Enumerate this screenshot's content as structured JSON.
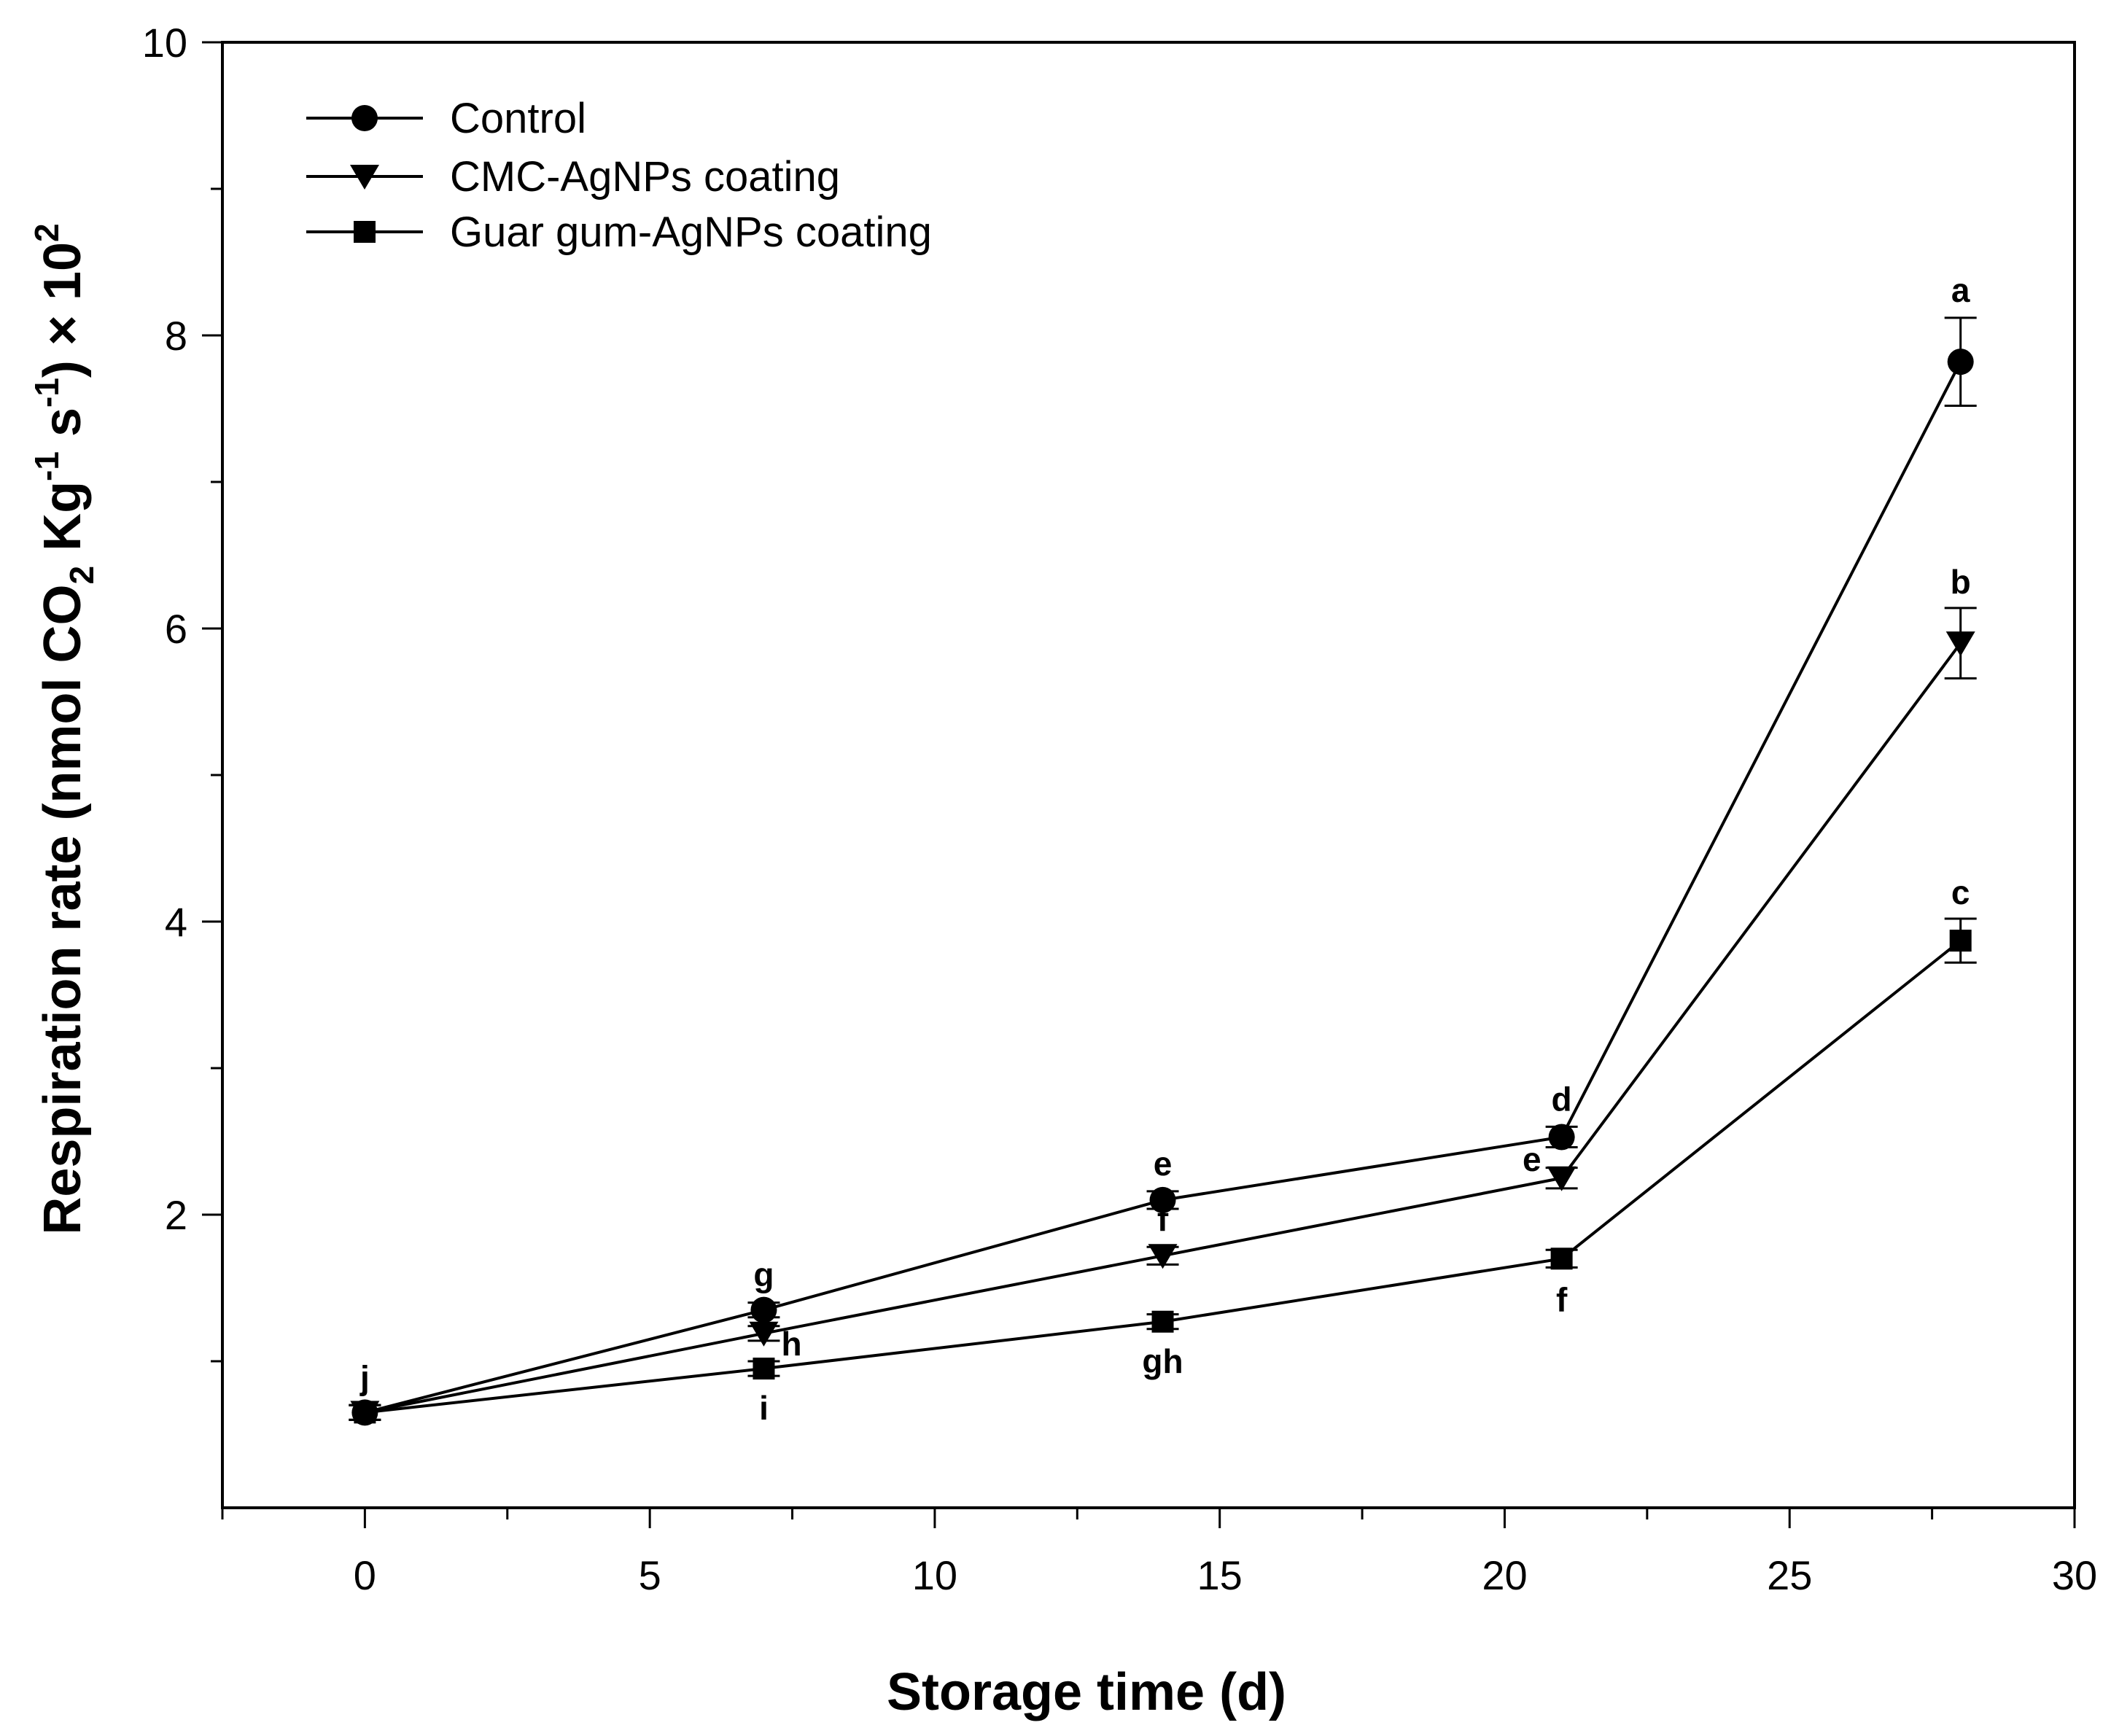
{
  "chart_data": {
    "type": "line",
    "xlabel": "Storage time (d)",
    "ylabel": {
      "main": "Respiration rate (nmol CO",
      "sub2": "2",
      "kg": " Kg",
      "sup_neg1": "-1",
      "s": " s",
      "sup_neg1b": "-1",
      "times": ") × 10",
      "sup2": "2"
    },
    "xlim": [
      -2.5,
      30
    ],
    "ylim": [
      0,
      10
    ],
    "xticks": [
      0,
      5,
      10,
      15,
      20,
      25,
      30
    ],
    "yticks": [
      2,
      4,
      6,
      8,
      10
    ],
    "x": [
      0,
      7,
      14,
      21,
      28
    ],
    "series": [
      {
        "name": "Control",
        "marker": "circle",
        "values": [
          0.65,
          1.35,
          2.1,
          2.53,
          7.82
        ],
        "errors": [
          0.05,
          0.05,
          0.06,
          0.07,
          0.3
        ],
        "letters": [
          "j",
          "g",
          "e",
          "d",
          "a"
        ],
        "letter_side": [
          "above",
          "above",
          "above",
          "above",
          "above"
        ]
      },
      {
        "name": "CMC-AgNPs coating",
        "marker": "triangle-down",
        "values": [
          0.65,
          1.19,
          1.72,
          2.25,
          5.9
        ],
        "errors": [
          0.05,
          0.05,
          0.06,
          0.07,
          0.24
        ],
        "letters": [
          "",
          "h",
          "f",
          "e",
          ""
        ],
        "letter_side": [
          "",
          "right",
          "above",
          "left",
          ""
        ]
      },
      {
        "name": "Guar gum-AgNPs coating",
        "marker": "square",
        "values": [
          0.65,
          0.95,
          1.27,
          1.7,
          3.87
        ],
        "errors": [
          0.05,
          0.05,
          0.05,
          0.06,
          0.15
        ],
        "letters": [
          "",
          "i",
          "gh",
          "f",
          ""
        ],
        "letter_side": [
          "",
          "below",
          "below",
          "below",
          ""
        ]
      }
    ],
    "extra_letters": [
      {
        "x": 28,
        "y": 6.14,
        "text": "b"
      },
      {
        "x": 28,
        "y": 4.02,
        "text": "c"
      }
    ],
    "legend": "top-left",
    "grid": false
  }
}
